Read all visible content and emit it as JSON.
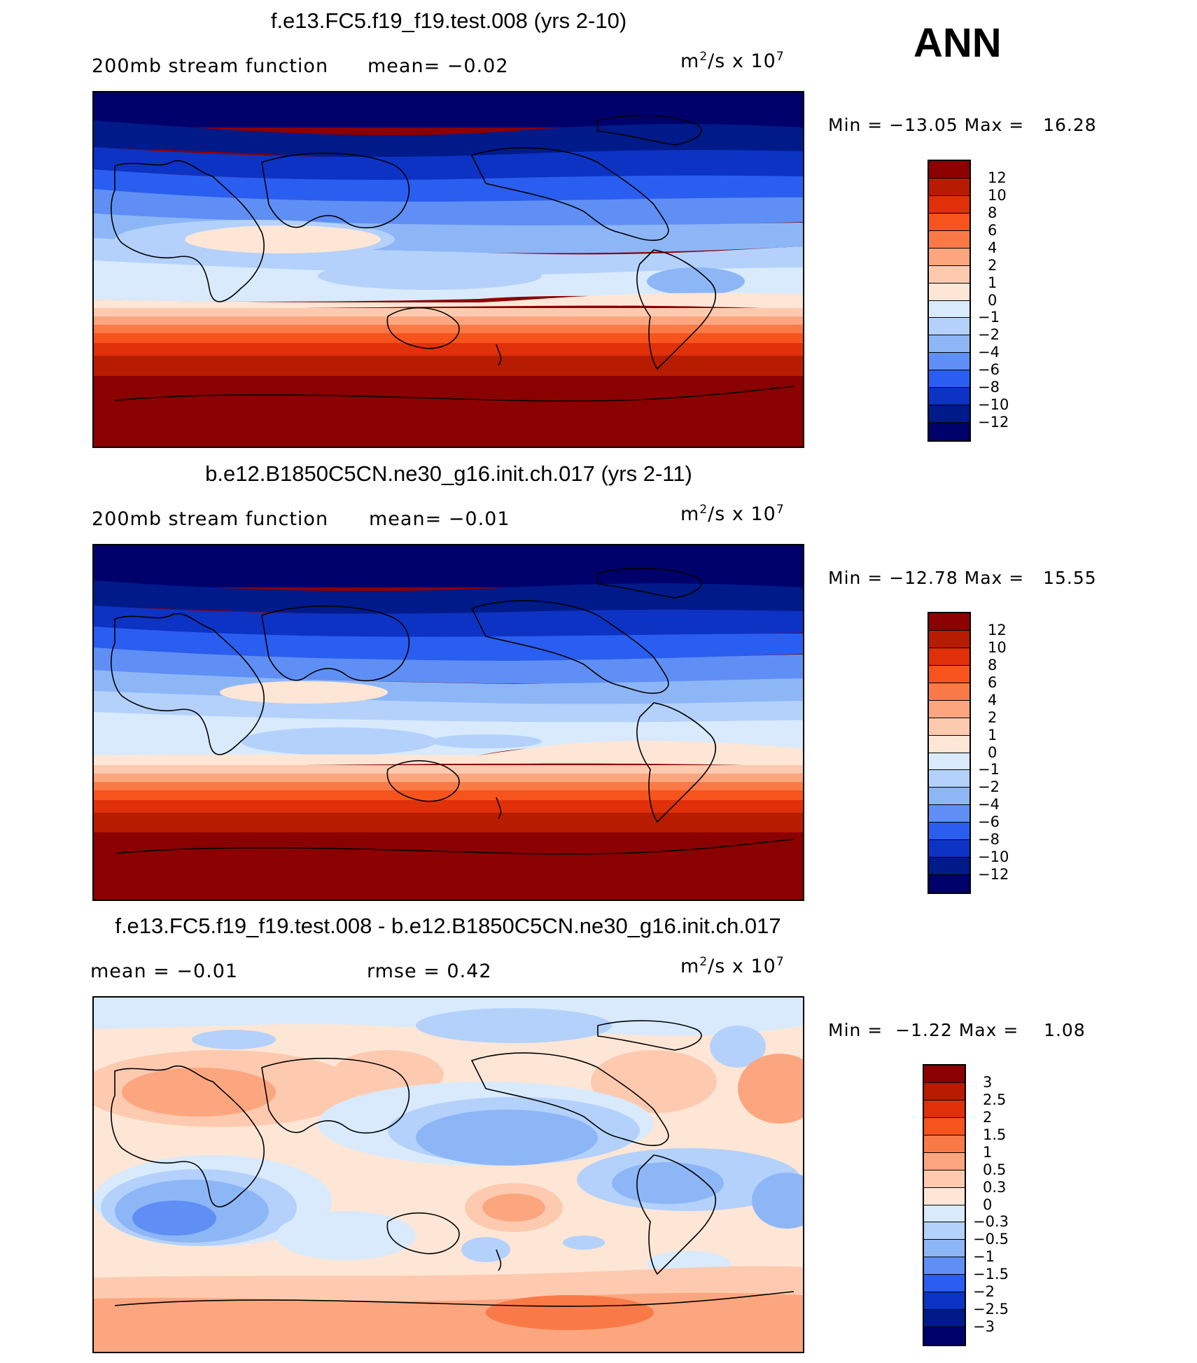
{
  "season": "ANN",
  "panels": [
    {
      "title": "f.e13.FC5.f19_f19.test.008 (yrs 2-10)",
      "subtitle_left": "200mb stream function",
      "subtitle_mid": "mean=   −0.02",
      "units_base": "m",
      "units_sup1": "2",
      "units_mid": "/s x 10",
      "units_sup2": "7",
      "min_max": "Min = −13.05 Max =   16.28",
      "colorbar_labels": [
        "12",
        "10",
        "8",
        "6",
        "4",
        "2",
        "1",
        "0",
        "−1",
        "−2",
        "−4",
        "−6",
        "−8",
        "−10",
        "−12"
      ],
      "colorbar_colors": [
        "#8b0000",
        "#b71c00",
        "#e0300a",
        "#f6541c",
        "#fa7a47",
        "#fca67f",
        "#fdcab0",
        "#fde6d6",
        "#d8eafc",
        "#b3d1fb",
        "#8db6f7",
        "#5f8ff4",
        "#2a5ef0",
        "#0c33c4",
        "#001a8a",
        "#00006b"
      ],
      "colorbar_full_labels": [
        "12",
        "10",
        "8",
        "6",
        "4",
        "2",
        "1",
        "0",
        "−1",
        "−2",
        "−4",
        "−6",
        "−8",
        "−10",
        "−12"
      ]
    },
    {
      "title": "b.e12.B1850C5CN.ne30_g16.init.ch.017 (yrs 2-11)",
      "subtitle_left": "200mb stream function",
      "subtitle_mid": "mean=   −0.01",
      "units_base": "m",
      "units_sup1": "2",
      "units_mid": "/s x 10",
      "units_sup2": "7",
      "min_max": "Min = −12.78 Max =   15.55",
      "colorbar_labels": [
        "12",
        "10",
        "8",
        "6",
        "4",
        "2",
        "1",
        "0",
        "−1",
        "−2",
        "−4",
        "−6",
        "−8",
        "−10",
        "−12"
      ],
      "colorbar_colors": [
        "#8b0000",
        "#b71c00",
        "#e0300a",
        "#f6541c",
        "#fa7a47",
        "#fca67f",
        "#fdcab0",
        "#fde6d6",
        "#d8eafc",
        "#b3d1fb",
        "#8db6f7",
        "#5f8ff4",
        "#2a5ef0",
        "#0c33c4",
        "#001a8a",
        "#00006b"
      ]
    },
    {
      "title": "f.e13.FC5.f19_f19.test.008 - b.e12.B1850C5CN.ne30_g16.init.ch.017",
      "subtitle_left": "mean =   −0.01",
      "subtitle_mid": "rmse =    0.42",
      "units_base": "m",
      "units_sup1": "2",
      "units_mid": "/s x 10",
      "units_sup2": "7",
      "min_max": "Min =  −1.22 Max =    1.08",
      "colorbar_labels": [
        "3",
        "2.5",
        "2",
        "1.5",
        "1",
        "0.5",
        "0.3",
        "0",
        "−0.3",
        "−0.5",
        "−1",
        "−1.5",
        "−2",
        "−2.5",
        "−3"
      ],
      "colorbar_colors": [
        "#8b0000",
        "#b71c00",
        "#e0300a",
        "#f6541c",
        "#fa7a47",
        "#fca67f",
        "#fdcab0",
        "#fde6d6",
        "#d8eafc",
        "#b3d1fb",
        "#8db6f7",
        "#5f8ff4",
        "#2a5ef0",
        "#0c33c4",
        "#001a8a",
        "#00006b"
      ]
    }
  ]
}
